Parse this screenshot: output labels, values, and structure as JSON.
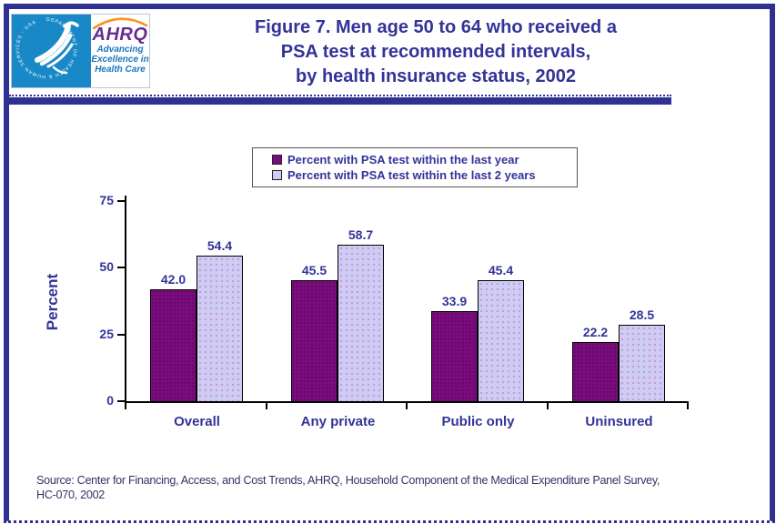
{
  "header": {
    "logo": {
      "hhs_seal_text": "DEPARTMENT OF HEALTH & HUMAN SERVICES - USA",
      "ahrq_acronym": "AHRQ",
      "tagline_lines": [
        "Advancing",
        "Excellence in",
        "Health Care"
      ]
    },
    "title_lines": [
      "Figure 7. Men age 50 to 64 who received a",
      "PSA test at recommended intervals,",
      "by health insurance status, 2002"
    ]
  },
  "chart_data": {
    "type": "bar",
    "categories": [
      "Overall",
      "Any private",
      "Public only",
      "Uninsured"
    ],
    "series": [
      {
        "name": "Percent with PSA test within the last year",
        "color": "#7B0C7E",
        "values": [
          42.0,
          45.5,
          33.9,
          22.2
        ]
      },
      {
        "name": "Percent with PSA test within the last 2 years",
        "color": "#CCCCF5",
        "values": [
          54.4,
          58.7,
          45.4,
          28.5
        ]
      }
    ],
    "ylabel": "Percent",
    "ylim": [
      0,
      75
    ],
    "yticks": [
      0,
      25,
      50,
      75
    ],
    "grid": false,
    "legend_position": "top-center",
    "value_labels": true
  },
  "footer": {
    "source_lines": [
      "Source: Center for Financing, Access, and Cost Trends, AHRQ, Household Component of the Medical Expenditure Panel Survey,",
      "HC-070, 2002"
    ]
  },
  "colors": {
    "frame": "#2E3192",
    "title_text": "#333399",
    "axis_text": "#333399",
    "bar_border": "#000000",
    "hhs_blue": "#1889C6",
    "ahrq_purple": "#662D91",
    "tagline_blue": "#1B75BC",
    "arc_orange": "#F7941D",
    "source_text": "#333366"
  }
}
